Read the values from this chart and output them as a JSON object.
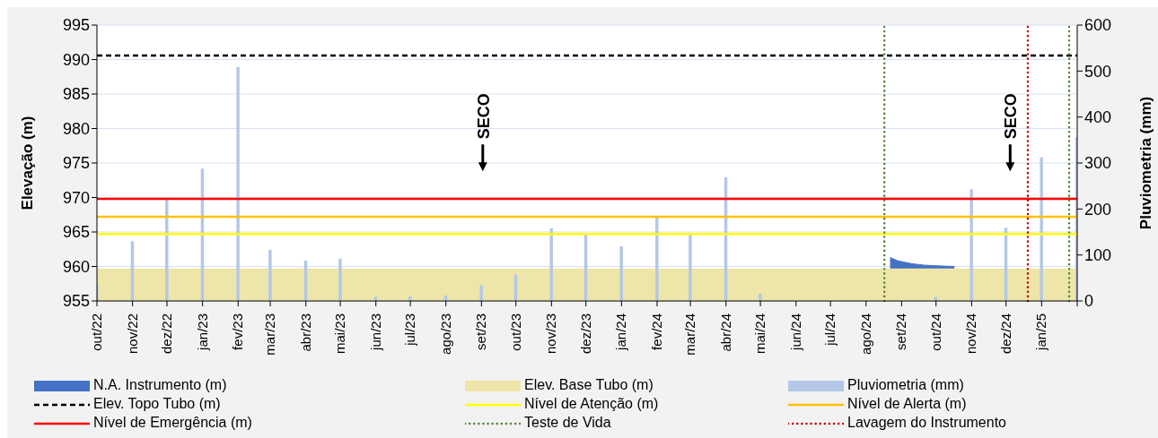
{
  "chart_data": {
    "type": "bar",
    "ylabel": "Elevação (m)",
    "y2label": "Pluviometria (mm)",
    "xlim": [
      "2022-10",
      "2025-02"
    ],
    "xticks": [
      {
        "value": "2022-10",
        "label": "out/22"
      },
      {
        "value": "2022-11",
        "label": "nov/22"
      },
      {
        "value": "2022-12",
        "label": "dez/22"
      },
      {
        "value": "2023-01",
        "label": "jan/23"
      },
      {
        "value": "2023-02",
        "label": "fev/23"
      },
      {
        "value": "2023-03",
        "label": "mar/23"
      },
      {
        "value": "2023-04",
        "label": "abr/23"
      },
      {
        "value": "2023-05",
        "label": "mai/23"
      },
      {
        "value": "2023-06",
        "label": "jun/23"
      },
      {
        "value": "2023-07",
        "label": "jul/23"
      },
      {
        "value": "2023-08",
        "label": "ago/23"
      },
      {
        "value": "2023-09",
        "label": "set/23"
      },
      {
        "value": "2023-10",
        "label": "out/23"
      },
      {
        "value": "2023-11",
        "label": "nov/23"
      },
      {
        "value": "2023-12",
        "label": "dez/23"
      },
      {
        "value": "2024-01",
        "label": "jan/24"
      },
      {
        "value": "2024-02",
        "label": "fev/24"
      },
      {
        "value": "2024-03",
        "label": "mar/24"
      },
      {
        "value": "2024-04",
        "label": "abr/24"
      },
      {
        "value": "2024-05",
        "label": "mai/24"
      },
      {
        "value": "2024-06",
        "label": "jun/24"
      },
      {
        "value": "2024-07",
        "label": "jul/24"
      },
      {
        "value": "2024-08",
        "label": "ago/24"
      },
      {
        "value": "2024-09",
        "label": "set/24"
      },
      {
        "value": "2024-10",
        "label": "out/24"
      },
      {
        "value": "2024-11",
        "label": "nov/24"
      },
      {
        "value": "2024-12",
        "label": "dez/24"
      },
      {
        "value": "2025-01",
        "label": "jan/25"
      },
      {
        "value": "2025-02",
        "label": null
      }
    ],
    "ylim": [
      955,
      995
    ],
    "yticks": [
      955,
      960,
      965,
      970,
      975,
      980,
      985,
      990,
      995
    ],
    "y2lim": [
      0,
      600
    ],
    "y2ticks": [
      0,
      100,
      200,
      300,
      400,
      500,
      600
    ],
    "grid": "y",
    "legend": "bottom",
    "series": [
      {
        "name": "N.A. Instrumento (m)",
        "type": "area",
        "color": "#4472c4",
        "x": [
          "2024-08-22",
          "2024-08-29",
          "2024-09-10",
          "2024-09-20",
          "2024-10-01",
          "2024-10-17"
        ],
        "values": [
          961.3,
          960.8,
          960.4,
          960.2,
          960.1,
          960.0
        ]
      },
      {
        "name": "Pluviometria (mm)",
        "axis": "y2",
        "color": "#b4c7e7",
        "x": [
          "2022-10",
          "2022-11",
          "2022-12",
          "2023-01",
          "2023-02",
          "2023-03",
          "2023-04",
          "2023-05",
          "2023-06",
          "2023-07",
          "2023-08",
          "2023-09",
          "2023-10",
          "2023-11",
          "2023-12",
          "2024-01",
          "2024-02",
          "2024-03",
          "2024-04",
          "2024-05",
          "2024-06",
          "2024-07",
          "2024-08",
          "2024-09",
          "2024-10",
          "2024-11",
          "2024-12",
          "2025-01",
          "2025-02"
        ],
        "values": [
          36,
          130,
          221,
          288,
          509,
          111,
          88,
          92,
          9,
          10,
          12,
          34,
          58,
          158,
          144,
          119,
          182,
          144,
          269,
          16,
          0,
          0,
          0,
          0,
          9,
          243,
          159,
          312,
          356
        ]
      }
    ],
    "bands": [
      {
        "axis": "y",
        "from": 955,
        "to": 959.7,
        "label": "Elev. Base Tubo (m)",
        "color": "#eee6a8"
      }
    ],
    "ref_lines": [
      {
        "axis": "y",
        "value": 990.6,
        "label": "Elev. Topo Tubo (m)",
        "color": "#000000",
        "line_style": "dashed"
      },
      {
        "axis": "y",
        "value": 964.7,
        "label": "Nível de Atenção (m)",
        "color": "#ffff00",
        "line_style": "solid"
      },
      {
        "axis": "y",
        "value": 967.2,
        "label": "Nível de Alerta (m)",
        "color": "#ffc000",
        "line_style": "solid"
      },
      {
        "axis": "y",
        "value": 969.8,
        "label": "Nível de Emergência (m)",
        "color": "#ff0000",
        "line_style": "solid"
      },
      {
        "axis": "x",
        "value": "2024-08-17",
        "label": "Teste de Vida",
        "color": "#548235",
        "line_style": "dotted"
      },
      {
        "axis": "x",
        "value": "2025-01-25",
        "color": "#548235",
        "line_style": "dotted"
      },
      {
        "axis": "x",
        "value": "2024-12-20",
        "label": "Lavagem do Instrumento",
        "color": "#c00000",
        "line_style": "dotted"
      }
    ],
    "annotations": [
      "SECO",
      "SECO"
    ]
  }
}
